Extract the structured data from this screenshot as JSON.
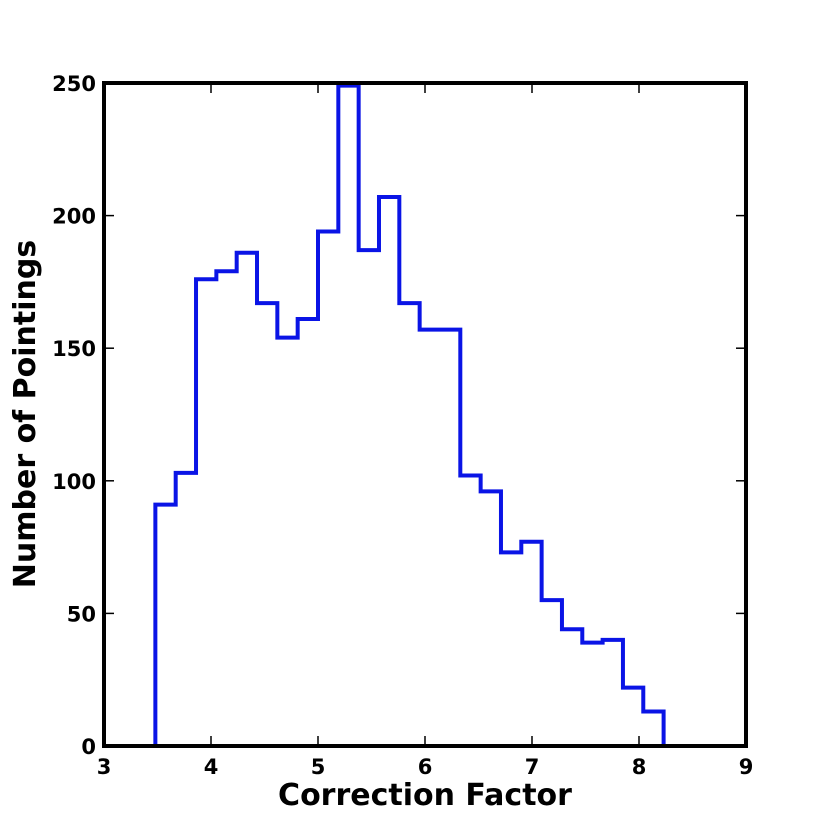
{
  "chart_data": {
    "type": "histogram-step",
    "xlabel": "Correction Factor",
    "ylabel": "Number of Pointings",
    "xlim": [
      3,
      9
    ],
    "ylim": [
      0,
      250
    ],
    "xticks": [
      3,
      4,
      5,
      6,
      7,
      8,
      9
    ],
    "yticks": [
      0,
      50,
      100,
      150,
      200,
      250
    ],
    "grid": false,
    "series": [
      {
        "color": "#0a14e6",
        "bin_edges": [
          3.48,
          3.67,
          3.86,
          4.05,
          4.24,
          4.43,
          4.62,
          4.81,
          5.0,
          5.19,
          5.38,
          5.57,
          5.76,
          5.95,
          6.14,
          6.33,
          6.52,
          6.71,
          6.9,
          7.09,
          7.28,
          7.47,
          7.66,
          7.85,
          8.04,
          8.23
        ],
        "counts": [
          91,
          103,
          176,
          179,
          186,
          167,
          154,
          161,
          194,
          249,
          187,
          207,
          167,
          157,
          157,
          102,
          96,
          73,
          77,
          55,
          44,
          39,
          40,
          22,
          13
        ]
      }
    ]
  }
}
